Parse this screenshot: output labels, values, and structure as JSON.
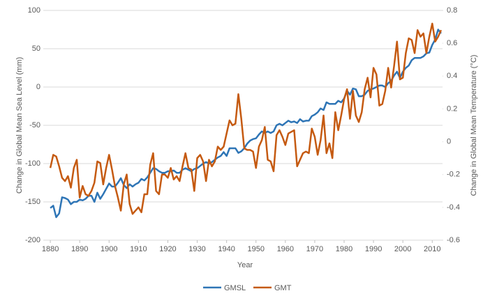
{
  "chart_data": {
    "type": "line",
    "xlabel": "Year",
    "ylabel": "Change in Global Mean Sea Level (mm)",
    "y2label": "Change in Global Mean Temperature (°C)",
    "x": [
      1880,
      1881,
      1882,
      1883,
      1884,
      1885,
      1886,
      1887,
      1888,
      1889,
      1890,
      1891,
      1892,
      1893,
      1894,
      1895,
      1896,
      1897,
      1898,
      1899,
      1900,
      1901,
      1902,
      1903,
      1904,
      1905,
      1906,
      1907,
      1908,
      1909,
      1910,
      1911,
      1912,
      1913,
      1914,
      1915,
      1916,
      1917,
      1918,
      1919,
      1920,
      1921,
      1922,
      1923,
      1924,
      1925,
      1926,
      1927,
      1928,
      1929,
      1930,
      1931,
      1932,
      1933,
      1934,
      1935,
      1936,
      1937,
      1938,
      1939,
      1940,
      1941,
      1942,
      1943,
      1944,
      1945,
      1946,
      1947,
      1948,
      1949,
      1950,
      1951,
      1952,
      1953,
      1954,
      1955,
      1956,
      1957,
      1958,
      1959,
      1960,
      1961,
      1962,
      1963,
      1964,
      1965,
      1966,
      1967,
      1968,
      1969,
      1970,
      1971,
      1972,
      1973,
      1974,
      1975,
      1976,
      1977,
      1978,
      1979,
      1980,
      1981,
      1982,
      1983,
      1984,
      1985,
      1986,
      1987,
      1988,
      1989,
      1990,
      1991,
      1992,
      1993,
      1994,
      1995,
      1996,
      1997,
      1998,
      1999,
      2000,
      2001,
      2002,
      2003,
      2004,
      2005,
      2006,
      2007,
      2008,
      2009,
      2010,
      2011,
      2012,
      2013
    ],
    "series": [
      {
        "name": "GMSL",
        "color": "#2e75b6",
        "axis": "y",
        "values": [
          -158,
          -155,
          -170,
          -165,
          -144,
          -145,
          -147,
          -153,
          -150,
          -150,
          -147,
          -148,
          -146,
          -142,
          -142,
          -150,
          -138,
          -146,
          -140,
          -133,
          -126,
          -130,
          -130,
          -125,
          -119,
          -128,
          -132,
          -127,
          -130,
          -127,
          -125,
          -120,
          -122,
          -118,
          -112,
          -106,
          -107,
          -110,
          -112,
          -112,
          -110,
          -110,
          -109,
          -112,
          -112,
          -108,
          -106,
          -108,
          -110,
          -107,
          -106,
          -103,
          -100,
          -98,
          -100,
          -98,
          -95,
          -92,
          -90,
          -85,
          -90,
          -80,
          -80,
          -80,
          -86,
          -84,
          -80,
          -74,
          -70,
          -68,
          -67,
          -62,
          -58,
          -60,
          -58,
          -60,
          -58,
          -50,
          -48,
          -50,
          -47,
          -44,
          -46,
          -45,
          -47,
          -42,
          -45,
          -44,
          -44,
          -38,
          -36,
          -33,
          -28,
          -30,
          -20,
          -22,
          -22,
          -22,
          -18,
          -20,
          -15,
          -5,
          -10,
          -2,
          -3,
          -12,
          -12,
          -10,
          -5,
          -3,
          -2,
          0,
          2,
          2,
          0,
          5,
          8,
          15,
          20,
          12,
          20,
          25,
          28,
          35,
          38,
          38,
          38,
          40,
          44,
          45,
          55,
          62,
          75,
          70
        ]
      },
      {
        "name": "GMT",
        "color": "#c55a11",
        "axis": "y2",
        "values": [
          -0.16,
          -0.08,
          -0.09,
          -0.15,
          -0.22,
          -0.24,
          -0.21,
          -0.28,
          -0.16,
          -0.11,
          -0.34,
          -0.27,
          -0.32,
          -0.33,
          -0.3,
          -0.25,
          -0.12,
          -0.13,
          -0.26,
          -0.16,
          -0.08,
          -0.17,
          -0.27,
          -0.34,
          -0.42,
          -0.26,
          -0.2,
          -0.38,
          -0.44,
          -0.42,
          -0.4,
          -0.43,
          -0.32,
          -0.32,
          -0.14,
          -0.07,
          -0.3,
          -0.32,
          -0.2,
          -0.2,
          -0.22,
          -0.16,
          -0.23,
          -0.21,
          -0.24,
          -0.15,
          -0.07,
          -0.16,
          -0.17,
          -0.3,
          -0.1,
          -0.08,
          -0.12,
          -0.24,
          -0.11,
          -0.15,
          -0.12,
          -0.03,
          -0.05,
          -0.03,
          0.05,
          0.13,
          0.1,
          0.11,
          0.29,
          0.14,
          -0.04,
          -0.05,
          -0.05,
          -0.06,
          -0.16,
          -0.03,
          0.01,
          0.09,
          -0.11,
          -0.12,
          -0.18,
          0.04,
          0.07,
          0.03,
          -0.02,
          0.05,
          0.06,
          0.07,
          -0.15,
          -0.11,
          -0.07,
          -0.06,
          -0.07,
          0.08,
          0.03,
          -0.08,
          0.01,
          0.16,
          -0.07,
          -0.01,
          -0.1,
          0.18,
          0.07,
          0.16,
          0.26,
          0.32,
          0.14,
          0.31,
          0.16,
          0.12,
          0.18,
          0.32,
          0.39,
          0.27,
          0.45,
          0.41,
          0.22,
          0.23,
          0.31,
          0.45,
          0.33,
          0.46,
          0.61,
          0.38,
          0.39,
          0.54,
          0.63,
          0.62,
          0.54,
          0.68,
          0.64,
          0.66,
          0.54,
          0.64,
          0.72,
          0.61,
          0.64,
          0.68
        ]
      }
    ],
    "xlim": [
      1877.6,
      2013.5
    ],
    "xticks": [
      1880,
      1890,
      1900,
      1910,
      1920,
      1930,
      1940,
      1950,
      1960,
      1970,
      1980,
      1990,
      2000,
      2010
    ],
    "ylim": [
      -200,
      100
    ],
    "yticks": [
      -200,
      -150,
      -100,
      -50,
      0,
      50,
      100
    ],
    "y2lim": [
      -0.6,
      0.8
    ],
    "y2ticks": [
      -0.6,
      -0.4,
      -0.2,
      0,
      0.2,
      0.4,
      0.6,
      0.8
    ],
    "grid": true,
    "legend": "bottom"
  }
}
